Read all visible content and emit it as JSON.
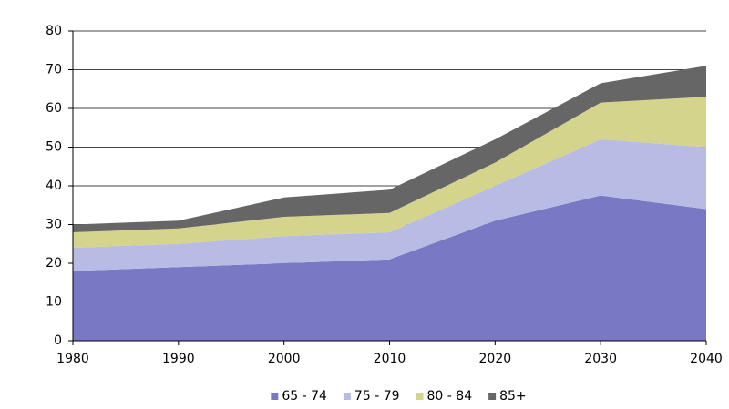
{
  "chart_data": {
    "type": "stacked_area",
    "x": [
      1980,
      1990,
      2000,
      2010,
      2020,
      2030,
      2040
    ],
    "series": [
      {
        "name": "65 - 74",
        "color": "#7878c4",
        "values": [
          18,
          19,
          20,
          21,
          31,
          37.5,
          34
        ]
      },
      {
        "name": "75 - 79",
        "color": "#b8bce4",
        "values": [
          6,
          6,
          7,
          7,
          9,
          14.5,
          16
        ]
      },
      {
        "name": "80 - 84",
        "color": "#d4d48c",
        "values": [
          4,
          4,
          5,
          5,
          6,
          9.5,
          13
        ]
      },
      {
        "name": "85+",
        "color": "#666666",
        "values": [
          2,
          2,
          5,
          6,
          6,
          5,
          8
        ]
      }
    ],
    "xlim": [
      1980,
      2040
    ],
    "xticks": [
      1980,
      1990,
      2000,
      2010,
      2020,
      2030,
      2040
    ],
    "ylim": [
      0,
      80
    ],
    "yticks": [
      0,
      10,
      20,
      30,
      40,
      50,
      60,
      70,
      80
    ],
    "grid": true,
    "legend": "bottom"
  }
}
